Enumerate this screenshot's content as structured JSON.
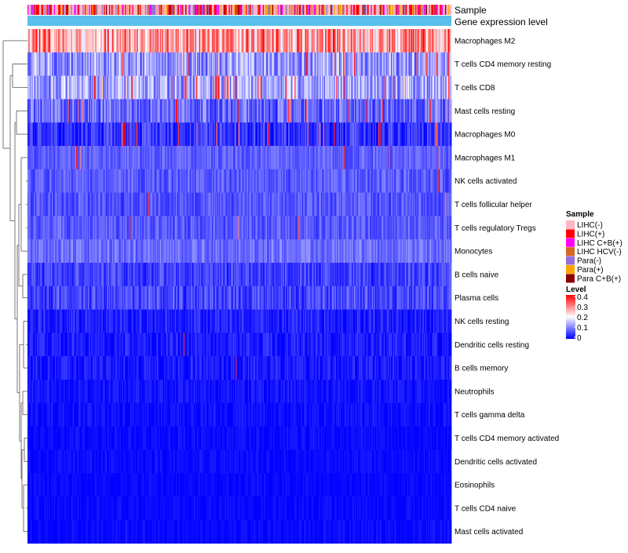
{
  "chart_data": {
    "type": "heatmap",
    "annotation_tracks": [
      "Sample",
      "Gene expression level"
    ],
    "rows": [
      {
        "label": "Macrophages M2",
        "mean": 0.26,
        "spread": 0.09,
        "hot": 0.22
      },
      {
        "label": "T cells CD4 memory resting",
        "mean": 0.12,
        "spread": 0.07,
        "hot": 0.03
      },
      {
        "label": "T cells CD8",
        "mean": 0.13,
        "spread": 0.07,
        "hot": 0.06
      },
      {
        "label": "Mast cells resting",
        "mean": 0.08,
        "spread": 0.06,
        "hot": 0.03
      },
      {
        "label": "Macrophages M0",
        "mean": 0.04,
        "spread": 0.05,
        "hot": 0.05
      },
      {
        "label": "Macrophages M1",
        "mean": 0.075,
        "spread": 0.03,
        "hot": 0.005
      },
      {
        "label": "NK cells activated",
        "mean": 0.07,
        "spread": 0.035,
        "hot": 0.003
      },
      {
        "label": "T cells follicular helper",
        "mean": 0.065,
        "spread": 0.035,
        "hot": 0.004
      },
      {
        "label": "T cells regulatory  Tregs",
        "mean": 0.07,
        "spread": 0.035,
        "hot": 0.004
      },
      {
        "label": "Monocytes",
        "mean": 0.085,
        "spread": 0.035,
        "hot": 0.003
      },
      {
        "label": "B cells naive",
        "mean": 0.05,
        "spread": 0.04,
        "hot": 0.002
      },
      {
        "label": "Plasma cells",
        "mean": 0.055,
        "spread": 0.045,
        "hot": 0.003
      },
      {
        "label": "NK cells resting",
        "mean": 0.025,
        "spread": 0.03,
        "hot": 0.001
      },
      {
        "label": "Dendritic cells resting",
        "mean": 0.02,
        "spread": 0.03,
        "hot": 0.001
      },
      {
        "label": "B cells memory",
        "mean": 0.02,
        "spread": 0.03,
        "hot": 0.001
      },
      {
        "label": "Neutrophils",
        "mean": 0.015,
        "spread": 0.02,
        "hot": 0.0
      },
      {
        "label": "T cells gamma delta",
        "mean": 0.01,
        "spread": 0.02,
        "hot": 0.0
      },
      {
        "label": "T cells CD4 memory activated",
        "mean": 0.008,
        "spread": 0.015,
        "hot": 0.0
      },
      {
        "label": "Dendritic cells activated",
        "mean": 0.008,
        "spread": 0.015,
        "hot": 0.0
      },
      {
        "label": "Eosinophils",
        "mean": 0.006,
        "spread": 0.012,
        "hot": 0.0
      },
      {
        "label": "T cells CD4 naive",
        "mean": 0.006,
        "spread": 0.015,
        "hot": 0.0
      },
      {
        "label": "Mast cells activated",
        "mean": 0.006,
        "spread": 0.015,
        "hot": 0.0
      }
    ],
    "n_samples": 400,
    "sample_groups": [
      {
        "name": "LIHC(-)",
        "color": "#FFB6C1",
        "share": 0.4
      },
      {
        "name": "LIHC(+)",
        "color": "#FF0000",
        "share": 0.2
      },
      {
        "name": "LIHC C+B(+)",
        "color": "#FF00FF",
        "share": 0.12
      },
      {
        "name": "LIHC HCV(-)",
        "color": "#D2691E",
        "share": 0.05
      },
      {
        "name": "Para(-)",
        "color": "#9370DB",
        "share": 0.12
      },
      {
        "name": "Para(+)",
        "color": "#FFA500",
        "share": 0.07
      },
      {
        "name": "Para C+B(+)",
        "color": "#8B0000",
        "share": 0.04
      }
    ],
    "gene_expression_level_color": "#5BC0EB",
    "legend": {
      "sample_title": "Sample",
      "level_title": "Level",
      "level_ticks": [
        "0.4",
        "0.3",
        "0.2",
        "0.1",
        "0"
      ],
      "level_range": [
        0,
        0.4
      ],
      "level_colors": [
        "#0000FF",
        "#FFFFFF",
        "#FF0000"
      ],
      "placement": "right"
    }
  }
}
